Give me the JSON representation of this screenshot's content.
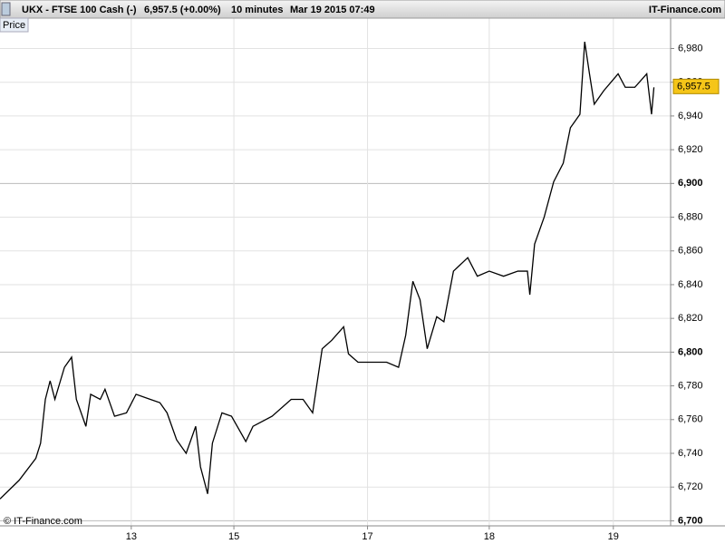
{
  "header": {
    "symbol": "UKX - FTSE 100 Cash (-)",
    "quote": "6,957.5 (+0.00%)",
    "interval": "10 minutes",
    "datetime": "Mar 19 2015 07:49",
    "source": "IT-Finance.com"
  },
  "panel_label": "Price",
  "copyright": "© IT-Finance.com",
  "chart_data": {
    "type": "line",
    "color": "#000000",
    "x": [
      0,
      8,
      15,
      17,
      19,
      21,
      23,
      27,
      30,
      32,
      36,
      38,
      42,
      44,
      48,
      53,
      57,
      63,
      67,
      70,
      74,
      78,
      82,
      84,
      87,
      89,
      93,
      97,
      103,
      106,
      114,
      122,
      127,
      131,
      135,
      139,
      144,
      146,
      150,
      156,
      162,
      167,
      170,
      173,
      176,
      179,
      183,
      186,
      190,
      196,
      200,
      205,
      211,
      217,
      221,
      222,
      224,
      228,
      232,
      236,
      239,
      243,
      245,
      247,
      249,
      253,
      259,
      262,
      266,
      271,
      273,
      274
    ],
    "values": [
      6713,
      6724,
      6737,
      6746,
      6772,
      6783,
      6772,
      6791,
      6797,
      6772,
      6756,
      6775,
      6772,
      6778,
      6762,
      6764,
      6775,
      6772,
      6770,
      6764,
      6748,
      6740,
      6756,
      6732,
      6716,
      6746,
      6764,
      6762,
      6747,
      6756,
      6762,
      6772,
      6772,
      6764,
      6802,
      6807,
      6815,
      6799,
      6794,
      6794,
      6794,
      6791,
      6810,
      6842,
      6831,
      6802,
      6821,
      6818,
      6848,
      6856,
      6845,
      6848,
      6845,
      6848,
      6848,
      6834,
      6864,
      6880,
      6901,
      6912,
      6933,
      6941,
      6984,
      6965,
      6947,
      6955,
      6965,
      6957,
      6957,
      6965,
      6941,
      6957
    ],
    "xlim": [
      0,
      281
    ],
    "xticks": [
      {
        "value": 55,
        "label": "13"
      },
      {
        "value": 98,
        "label": "15"
      },
      {
        "value": 154,
        "label": "17"
      },
      {
        "value": 205,
        "label": "18"
      },
      {
        "value": 257,
        "label": "19"
      }
    ],
    "ylim": [
      6697,
      6998
    ],
    "yticks": [
      {
        "value": 6700,
        "label": "6,700",
        "bold": true
      },
      {
        "value": 6720,
        "label": "6,720"
      },
      {
        "value": 6740,
        "label": "6,740"
      },
      {
        "value": 6760,
        "label": "6,760"
      },
      {
        "value": 6780,
        "label": "6,780"
      },
      {
        "value": 6800,
        "label": "6,800",
        "bold": true
      },
      {
        "value": 6820,
        "label": "6,820"
      },
      {
        "value": 6840,
        "label": "6,840"
      },
      {
        "value": 6860,
        "label": "6,860"
      },
      {
        "value": 6880,
        "label": "6,880"
      },
      {
        "value": 6900,
        "label": "6,900",
        "bold": true
      },
      {
        "value": 6920,
        "label": "6,920"
      },
      {
        "value": 6940,
        "label": "6,940"
      },
      {
        "value": 6960,
        "label": "6,960"
      },
      {
        "value": 6980,
        "label": "6,980"
      }
    ],
    "last_value": {
      "value": 6957.5,
      "label": "6,957.5"
    },
    "grid": true
  }
}
